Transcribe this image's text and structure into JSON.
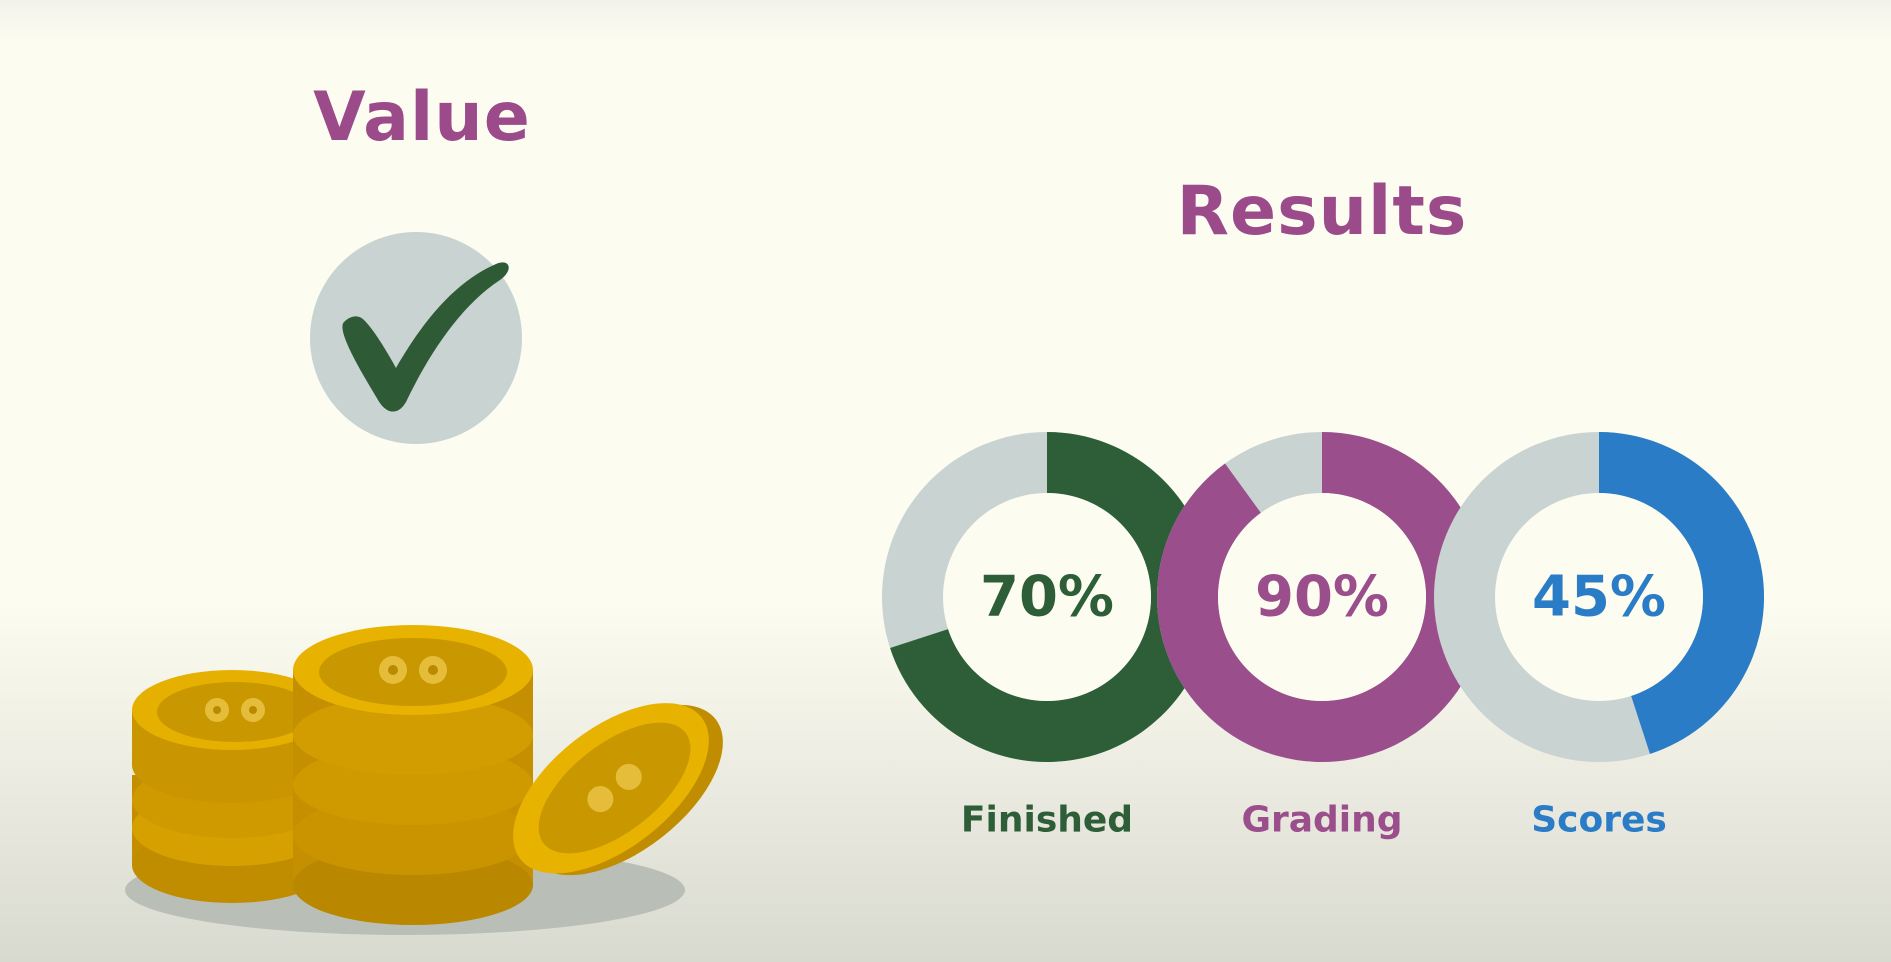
{
  "left_panel": {
    "title": "Value",
    "icons": [
      "check-mark-icon",
      "gold-coins-icon"
    ]
  },
  "right_panel": {
    "title": "Results"
  },
  "colors": {
    "title": "#9b4a8a",
    "track": "#c9d3d1",
    "check_fill": "#2e5a36",
    "check_bg": "#c9d3d1"
  },
  "chart_data": {
    "type": "pie",
    "variant": "donut",
    "title": "Results",
    "series": [
      {
        "name": "Finished",
        "value": 70,
        "display": "70%",
        "color": "#2d5e38"
      },
      {
        "name": "Grading",
        "value": 90,
        "display": "90%",
        "color": "#9b4e8c"
      },
      {
        "name": "Scores",
        "value": 45,
        "display": "45%",
        "color": "#2b7cc7"
      }
    ],
    "max": 100
  }
}
